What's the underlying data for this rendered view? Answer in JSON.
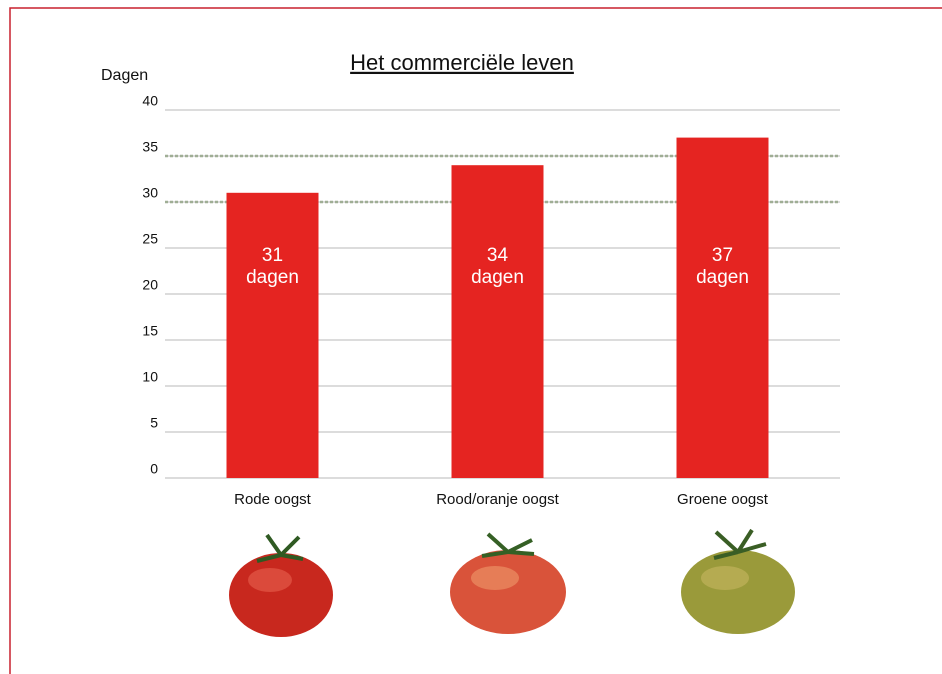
{
  "chart_data": {
    "type": "bar",
    "title": "Het commerciële leven",
    "y_label": "Dagen",
    "categories": [
      "Rode oogst",
      "Rood/oranje oogst",
      "Groene oogst"
    ],
    "values": [
      31,
      34,
      37
    ],
    "value_labels": [
      "31 dagen",
      "34 dagen",
      "37 dagen"
    ],
    "color": "#e52421",
    "ylim": [
      0,
      40
    ],
    "yticks": [
      0,
      5,
      10,
      15,
      20,
      25,
      30,
      35,
      40
    ],
    "grid": true,
    "reference_lines": [
      30,
      35
    ],
    "reference_color": "#9fae95"
  }
}
